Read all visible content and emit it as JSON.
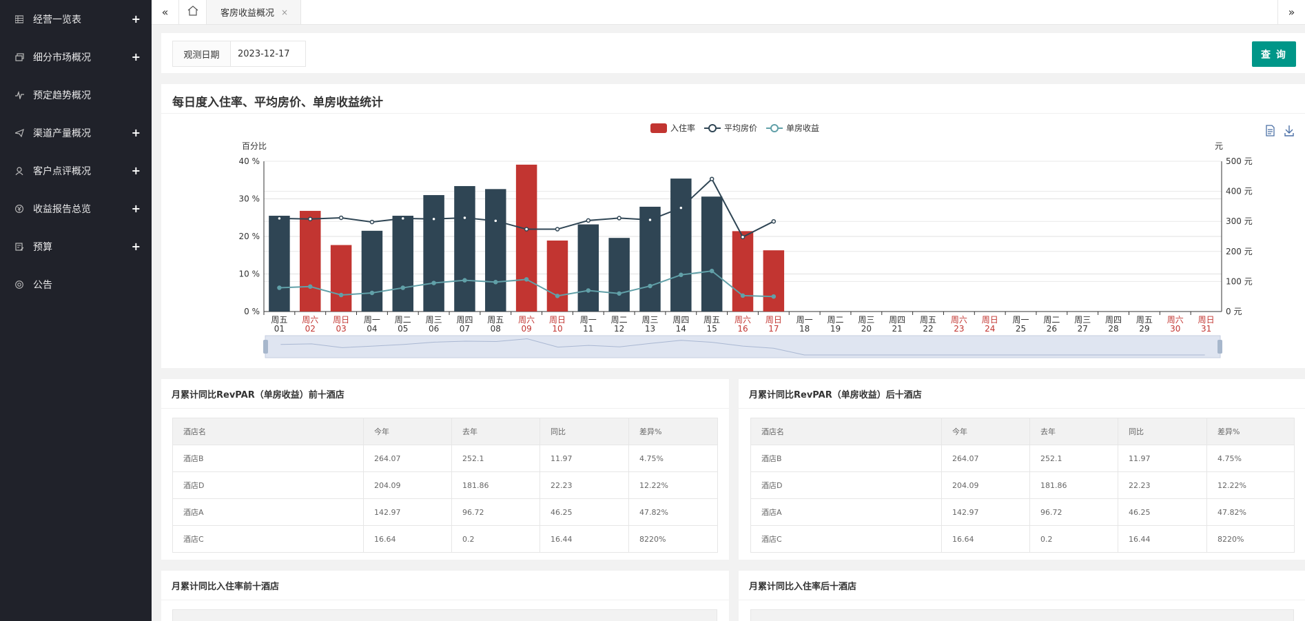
{
  "sidebar": {
    "items": [
      {
        "label": "经营一览表",
        "icon": "grid-icon",
        "expandable": true
      },
      {
        "label": "细分市场概况",
        "icon": "cards-icon",
        "expandable": true
      },
      {
        "label": "预定趋势概况",
        "icon": "pulse-icon",
        "expandable": false
      },
      {
        "label": "渠道产量概况",
        "icon": "send-icon",
        "expandable": true
      },
      {
        "label": "客户点评概况",
        "icon": "user-icon",
        "expandable": true
      },
      {
        "label": "收益报告总览",
        "icon": "yen-icon",
        "expandable": true
      },
      {
        "label": "预算",
        "icon": "note-icon",
        "expandable": true
      },
      {
        "label": "公告",
        "icon": "at-icon",
        "expandable": false
      }
    ]
  },
  "tabs": {
    "active_label": "客房收益概况",
    "close_glyph": "×",
    "back_glyph": "«",
    "forward_glyph": "»",
    "home_glyph": "⌂"
  },
  "query": {
    "date_label": "观测日期",
    "date_value": "2023-12-17",
    "button_label": "查 询"
  },
  "chart_panel": {
    "title": "每日度入住率、平均房价、单房收益统计"
  },
  "chart_data": {
    "type": "bar",
    "categories": [
      "周五\n01",
      "周六\n02",
      "周日\n03",
      "周一\n04",
      "周二\n05",
      "周三\n06",
      "周四\n07",
      "周五\n08",
      "周六\n09",
      "周日\n10",
      "周一\n11",
      "周二\n12",
      "周三\n13",
      "周四\n14",
      "周五\n15",
      "周六\n16",
      "周日\n17",
      "周一\n18",
      "周二\n19",
      "周三\n20",
      "周四\n21",
      "周五\n22",
      "周六\n23",
      "周日\n24",
      "周一\n25",
      "周二\n26",
      "周三\n27",
      "周四\n28",
      "周五\n29",
      "周六\n30",
      "周日\n31"
    ],
    "weekend_flags": [
      false,
      true,
      true,
      false,
      false,
      false,
      false,
      false,
      true,
      true,
      false,
      false,
      false,
      false,
      false,
      true,
      true,
      false,
      false,
      false,
      false,
      false,
      true,
      true,
      false,
      false,
      false,
      false,
      false,
      true,
      true
    ],
    "series": [
      {
        "name": "入住率",
        "type": "bar",
        "axis": "left",
        "values": [
          25.5,
          26.8,
          17.7,
          21.5,
          25.5,
          31.0,
          33.4,
          32.6,
          39.1,
          18.9,
          23.2,
          19.6,
          27.9,
          35.4,
          30.6,
          21.4,
          16.3,
          null,
          null,
          null,
          null,
          null,
          null,
          null,
          null,
          null,
          null,
          null,
          null,
          null,
          null
        ]
      },
      {
        "name": "平均房价",
        "type": "line",
        "axis": "right",
        "values": [
          310,
          308,
          312,
          298,
          310,
          308,
          312,
          302,
          274,
          274,
          303,
          311,
          305,
          345,
          441,
          248,
          300,
          null,
          null,
          null,
          null,
          null,
          null,
          null,
          null,
          null,
          null,
          null,
          null,
          null,
          null
        ]
      },
      {
        "name": "单房收益",
        "type": "line",
        "axis": "right",
        "values": [
          79,
          83,
          55,
          62,
          79,
          95,
          104,
          98,
          107,
          52,
          70,
          60,
          85,
          122,
          135,
          53,
          50,
          null,
          null,
          null,
          null,
          null,
          null,
          null,
          null,
          null,
          null,
          null,
          null,
          null,
          null
        ]
      }
    ],
    "left_axis": {
      "label": "百分比",
      "ticks": [
        "0 %",
        "10 %",
        "20 %",
        "30 %",
        "40 %"
      ],
      "ylim": [
        0,
        40
      ]
    },
    "right_axis": {
      "label": "元",
      "ticks": [
        "0 元",
        "100 元",
        "200 元",
        "300 元",
        "400 元",
        "500 元"
      ],
      "ylim": [
        0,
        500
      ]
    },
    "colors": {
      "bar_weekday": "#2f4554",
      "bar_weekend": "#c23531",
      "avg_price_line": "#2f4554",
      "revpar_line": "#61a0a8",
      "weekend_label": "#c23531",
      "weekday_label": "#333333"
    },
    "legend_position": "top-center",
    "toolbox_icons": [
      "data-view-icon",
      "download-icon"
    ]
  },
  "tables": {
    "headers": [
      "酒店名",
      "今年",
      "去年",
      "同比",
      "差异%"
    ],
    "top_revpar": {
      "title": "月累计同比RevPAR（单房收益）前十酒店",
      "rows": [
        [
          "酒店B",
          "264.07",
          "252.1",
          "11.97",
          "4.75%"
        ],
        [
          "酒店D",
          "204.09",
          "181.86",
          "22.23",
          "12.22%"
        ],
        [
          "酒店A",
          "142.97",
          "96.72",
          "46.25",
          "47.82%"
        ],
        [
          "酒店C",
          "16.64",
          "0.2",
          "16.44",
          "8220%"
        ]
      ]
    },
    "bottom_revpar": {
      "title": "月累计同比RevPAR（单房收益）后十酒店",
      "rows": [
        [
          "酒店B",
          "264.07",
          "252.1",
          "11.97",
          "4.75%"
        ],
        [
          "酒店D",
          "204.09",
          "181.86",
          "22.23",
          "12.22%"
        ],
        [
          "酒店A",
          "142.97",
          "96.72",
          "46.25",
          "47.82%"
        ],
        [
          "酒店C",
          "16.64",
          "0.2",
          "16.44",
          "8220%"
        ]
      ]
    },
    "top_occupancy": {
      "title": "月累计同比入住率前十酒店"
    },
    "bottom_occupancy": {
      "title": "月累计同比入住率后十酒店"
    }
  }
}
